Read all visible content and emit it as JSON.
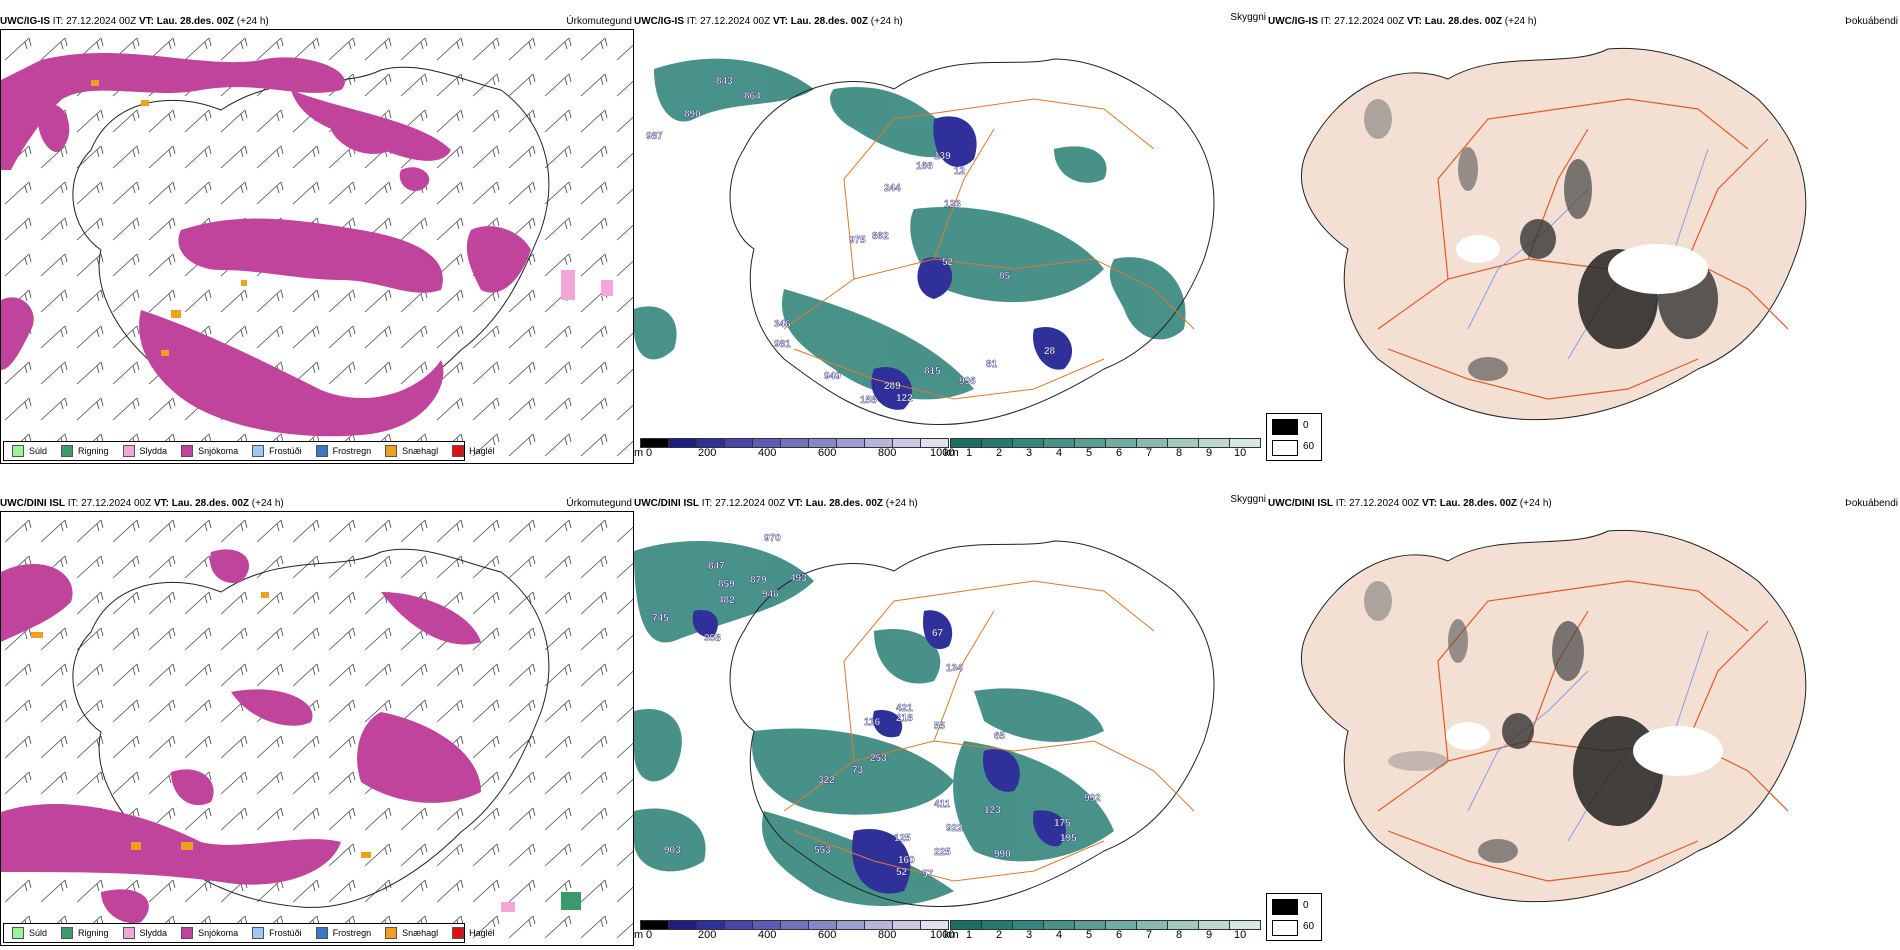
{
  "rows": [
    {
      "model": "UWC/IG-IS",
      "it_label": "IT:",
      "it_value": "27.12.2024 00Z",
      "vt_label": "VT:",
      "vt_value": "Lau. 28.des. 00Z",
      "lead": "(+24 h)"
    },
    {
      "model": "UWC/DINI ISL",
      "it_label": "IT:",
      "it_value": "27.12.2024 00Z",
      "vt_label": "VT:",
      "vt_value": "Lau. 28.des. 00Z",
      "lead": "(+24 h)"
    }
  ],
  "titles": {
    "precip": "Úrkomutegund",
    "visibility": "Skyggni",
    "fog": "Þokuábendi"
  },
  "precip_legend": [
    {
      "label": "Súld",
      "color": "#9af59a"
    },
    {
      "label": "Rigning",
      "color": "#3a9a6c"
    },
    {
      "label": "Slydda",
      "color": "#f2a7d6"
    },
    {
      "label": "Snjókoma",
      "color": "#c0449c"
    },
    {
      "label": "Frostúði",
      "color": "#9cc8f2"
    },
    {
      "label": "Frostregn",
      "color": "#3a76c8"
    },
    {
      "label": "Snæhagl",
      "color": "#f0a020"
    },
    {
      "label": "Haglél",
      "color": "#e01010"
    }
  ],
  "ceiling_scale": {
    "unit": "m",
    "ticks": [
      "0",
      "200",
      "400",
      "600",
      "800",
      "1000"
    ],
    "colors": [
      "#000000",
      "#1e1e80",
      "#30309a",
      "#4646a8",
      "#5c5cb4",
      "#7272be",
      "#8888c8",
      "#9e9ed2",
      "#b4b4dc",
      "#cacae6",
      "#e0e0f0"
    ]
  },
  "visibility_scale": {
    "unit": "km",
    "ticks": [
      "1",
      "2",
      "3",
      "4",
      "5",
      "6",
      "7",
      "8",
      "9",
      "10"
    ],
    "colors": [
      "#1a6e64",
      "#267a70",
      "#34867c",
      "#469288",
      "#5a9e94",
      "#70aca2",
      "#88bab0",
      "#a2c8c0",
      "#bcd8d0",
      "#d6e8e2"
    ]
  },
  "fog_legend": {
    "black_value": "0",
    "white_value": "60"
  },
  "map_labels_row1": [
    "843",
    "864",
    "890",
    "987",
    "139",
    "166",
    "12",
    "244",
    "123",
    "975",
    "862",
    "52",
    "85",
    "346",
    "981",
    "949",
    "815",
    "996",
    "289",
    "122",
    "158",
    "28",
    "81"
  ],
  "map_labels_row2": [
    "970",
    "847",
    "859",
    "879",
    "493",
    "946",
    "482",
    "745",
    "358",
    "67",
    "134",
    "421",
    "116",
    "218",
    "55",
    "65",
    "253",
    "73",
    "322",
    "411",
    "123",
    "992",
    "922",
    "175",
    "195",
    "125",
    "553",
    "160",
    "225",
    "52",
    "57",
    "903",
    "990"
  ]
}
